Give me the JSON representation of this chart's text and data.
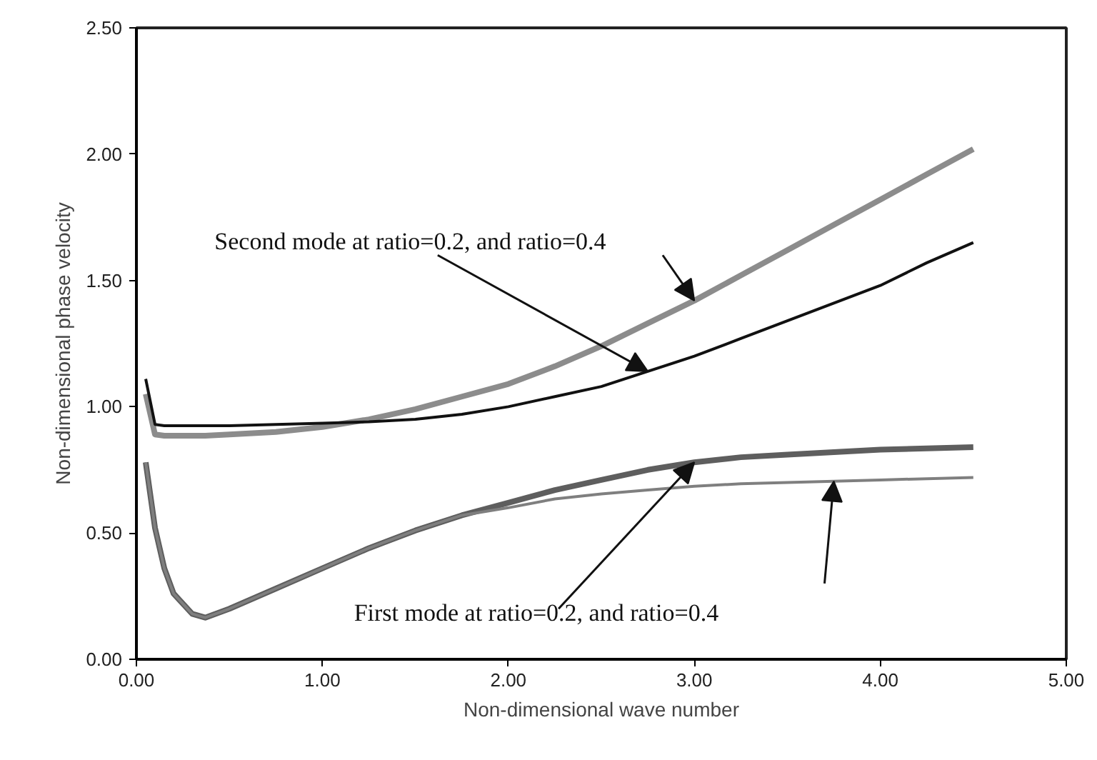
{
  "chart_data": {
    "type": "line",
    "xlabel": "Non-dimensional wave number",
    "ylabel": "Non-dimensional phase velocity",
    "x": [
      0.05,
      0.1,
      0.15,
      0.2,
      0.3,
      0.37,
      0.5,
      0.75,
      1,
      1.25,
      1.5,
      1.75,
      2,
      2.25,
      2.5,
      2.75,
      3,
      3.25,
      3.5,
      3.75,
      4,
      4.25,
      4.5
    ],
    "series": [
      {
        "color": "#5e5e5e",
        "values": [
          0.78,
          0.52,
          0.36,
          0.26,
          0.18,
          0.165,
          0.2,
          0.28,
          0.36,
          0.44,
          0.51,
          0.57,
          0.62,
          0.67,
          0.71,
          0.75,
          0.78,
          0.8,
          0.81,
          0.82,
          0.83,
          0.835,
          0.84
        ]
      },
      {
        "color": "#7f7f7f",
        "values": [
          0.78,
          0.52,
          0.36,
          0.26,
          0.18,
          0.165,
          0.2,
          0.28,
          0.36,
          0.44,
          0.51,
          0.57,
          0.6,
          0.635,
          0.655,
          0.67,
          0.685,
          0.695,
          0.7,
          0.705,
          0.71,
          0.715,
          0.72
        ]
      },
      {
        "color": "#8c8c8c",
        "values": [
          1.05,
          0.89,
          0.885,
          0.885,
          0.885,
          0.885,
          0.89,
          0.9,
          0.92,
          0.95,
          0.99,
          1.04,
          1.09,
          1.16,
          1.24,
          1.33,
          1.42,
          1.52,
          1.62,
          1.72,
          1.82,
          1.92,
          2.02
        ]
      },
      {
        "color": "#111111",
        "values": [
          1.11,
          0.93,
          0.925,
          0.925,
          0.925,
          0.925,
          0.925,
          0.93,
          0.935,
          0.94,
          0.95,
          0.97,
          1.0,
          1.04,
          1.08,
          1.14,
          1.2,
          1.27,
          1.34,
          1.41,
          1.48,
          1.57,
          1.65
        ]
      }
    ],
    "annotations": [
      {
        "text": "Second mode at ratio=0.2, and ratio=0.4",
        "x": 2.75,
        "y": 1.14
      },
      {
        "text": "First mode at ratio=0.2, and ratio=0.4",
        "x": 3,
        "y": 0.78
      }
    ],
    "xlim": [
      0,
      5
    ],
    "ylim": [
      0,
      2.5
    ],
    "xticks": [
      {
        "value": 0,
        "label": "0.00"
      },
      {
        "value": 1,
        "label": "1.00"
      },
      {
        "value": 2,
        "label": "2.00"
      },
      {
        "value": 3,
        "label": "3.00"
      },
      {
        "value": 4,
        "label": "4.00"
      },
      {
        "value": 5,
        "label": "5.00"
      }
    ],
    "yticks": [
      {
        "value": 0,
        "label": "0.00"
      },
      {
        "value": 0.5,
        "label": "0.50"
      },
      {
        "value": 1,
        "label": "1.00"
      },
      {
        "value": 1.5,
        "label": "1.50"
      },
      {
        "value": 2,
        "label": "2.00"
      },
      {
        "value": 2.5,
        "label": "2.50"
      }
    ],
    "grid": false,
    "marker": "none",
    "line_style": "solid"
  }
}
